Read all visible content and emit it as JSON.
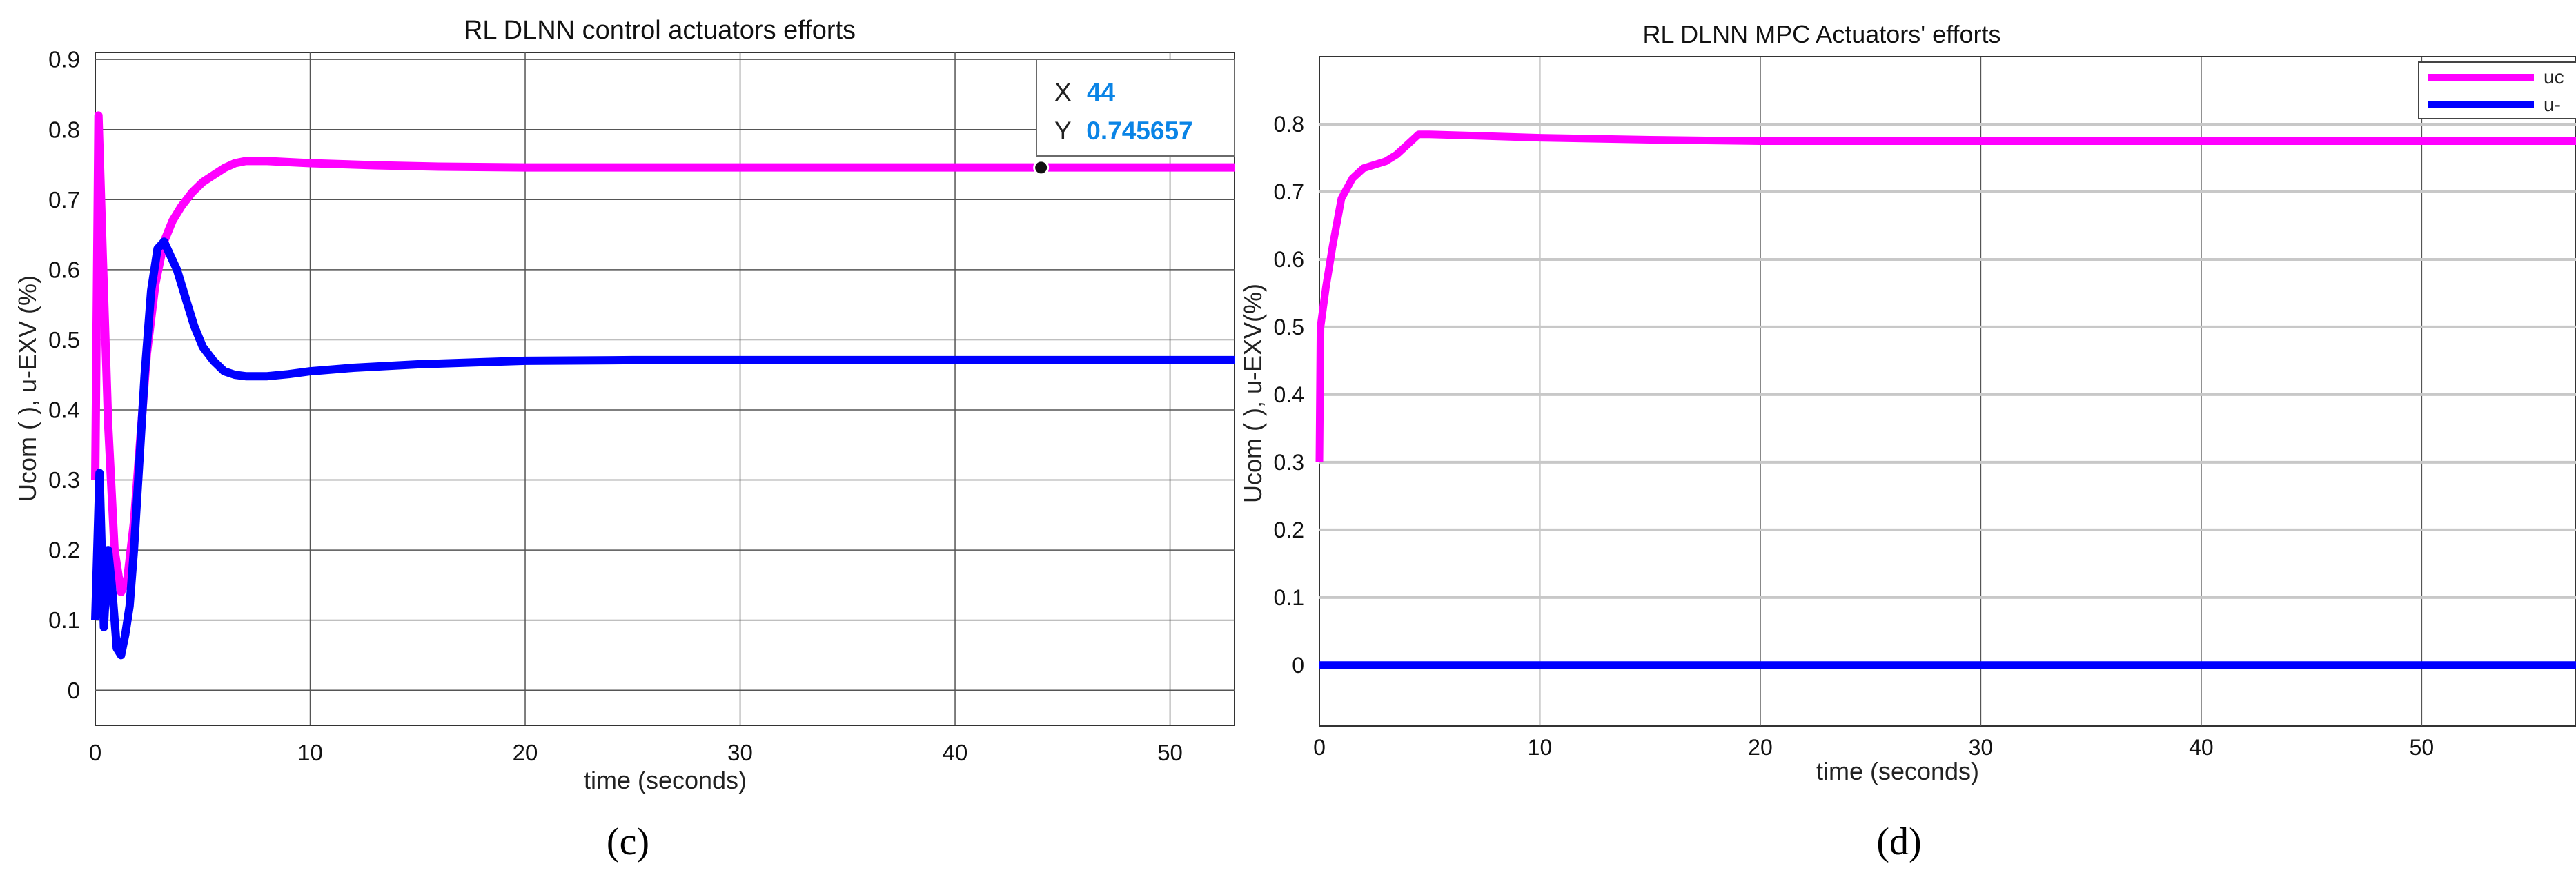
{
  "panel_labels": [
    "(c)",
    "(d)"
  ],
  "chart_data": [
    {
      "type": "line",
      "title": "RL DLNN control actuators efforts",
      "xlabel": "time (seconds)",
      "ylabel": "Ucom ( ), u-EXV (%)",
      "xlim": [
        0,
        53
      ],
      "ylim": [
        -0.05,
        0.91
      ],
      "xticks": [
        0,
        10,
        20,
        30,
        40,
        50
      ],
      "yticks": [
        0,
        0.1,
        0.2,
        0.3,
        0.4,
        0.5,
        0.6,
        0.7,
        0.8,
        0.9
      ],
      "grid": true,
      "legend": "none",
      "colors": [
        "#ff00ff",
        "#0000ff"
      ],
      "datatip": {
        "x_label": "X",
        "x_value": "44",
        "y_label": "Y",
        "y_value": "0.745657",
        "x": 44,
        "y": 0.745657
      },
      "series": [
        {
          "x": [
            0,
            0.15,
            0.35,
            0.6,
            0.9,
            1.2,
            1.5,
            1.8,
            2.1,
            2.4,
            2.8,
            3.2,
            3.6,
            4.0,
            4.5,
            5.0,
            5.5,
            6.0,
            6.5,
            7.0,
            8.0,
            10,
            13,
            16,
            20,
            25,
            30,
            35,
            40,
            44,
            48,
            53
          ],
          "y": [
            0.3,
            0.82,
            0.62,
            0.38,
            0.2,
            0.14,
            0.16,
            0.24,
            0.36,
            0.48,
            0.58,
            0.64,
            0.67,
            0.69,
            0.71,
            0.725,
            0.735,
            0.745,
            0.752,
            0.755,
            0.755,
            0.752,
            0.749,
            0.747,
            0.746,
            0.746,
            0.746,
            0.746,
            0.746,
            0.746,
            0.746,
            0.746
          ]
        },
        {
          "x": [
            0,
            0.2,
            0.4,
            0.6,
            0.8,
            1.0,
            1.2,
            1.4,
            1.6,
            1.8,
            2.0,
            2.3,
            2.6,
            2.9,
            3.2,
            3.5,
            3.8,
            4.2,
            4.6,
            5.0,
            5.5,
            6.0,
            6.5,
            7.0,
            8.0,
            9.0,
            10,
            12,
            15,
            18,
            20,
            25,
            30,
            40,
            53
          ],
          "y": [
            0.1,
            0.31,
            0.09,
            0.2,
            0.14,
            0.06,
            0.05,
            0.08,
            0.12,
            0.2,
            0.3,
            0.45,
            0.57,
            0.63,
            0.64,
            0.62,
            0.6,
            0.56,
            0.52,
            0.49,
            0.47,
            0.455,
            0.45,
            0.448,
            0.448,
            0.451,
            0.455,
            0.46,
            0.465,
            0.468,
            0.47,
            0.471,
            0.471,
            0.471,
            0.471
          ]
        }
      ]
    },
    {
      "type": "line",
      "title": "RL DLNN MPC Actuators' efforts",
      "xlabel": "time (seconds)",
      "ylabel": "Ucom ( ), u-EXV(%)",
      "xlim": [
        0,
        57
      ],
      "ylim": [
        -0.09,
        0.9
      ],
      "xticks": [
        0,
        10,
        20,
        30,
        40,
        50
      ],
      "yticks": [
        0,
        0.1,
        0.2,
        0.3,
        0.4,
        0.5,
        0.6,
        0.7,
        0.8
      ],
      "grid": true,
      "legend": "top-right",
      "legend_entries": [
        "uc",
        "u-"
      ],
      "colors": [
        "#ff00ff",
        "#0000ff"
      ],
      "series": [
        {
          "name": "uc",
          "x": [
            0,
            0.05,
            0.3,
            0.6,
            1.0,
            1.5,
            2.0,
            3.0,
            3.5,
            4.0,
            4.5,
            5.0,
            7.0,
            10,
            15,
            20,
            30,
            40,
            50,
            57
          ],
          "y": [
            0.3,
            0.5,
            0.56,
            0.62,
            0.69,
            0.72,
            0.735,
            0.745,
            0.755,
            0.77,
            0.785,
            0.785,
            0.783,
            0.78,
            0.777,
            0.775,
            0.775,
            0.775,
            0.775,
            0.775
          ]
        },
        {
          "name": "u-",
          "x": [
            0,
            57
          ],
          "y": [
            0,
            0
          ]
        }
      ]
    }
  ]
}
